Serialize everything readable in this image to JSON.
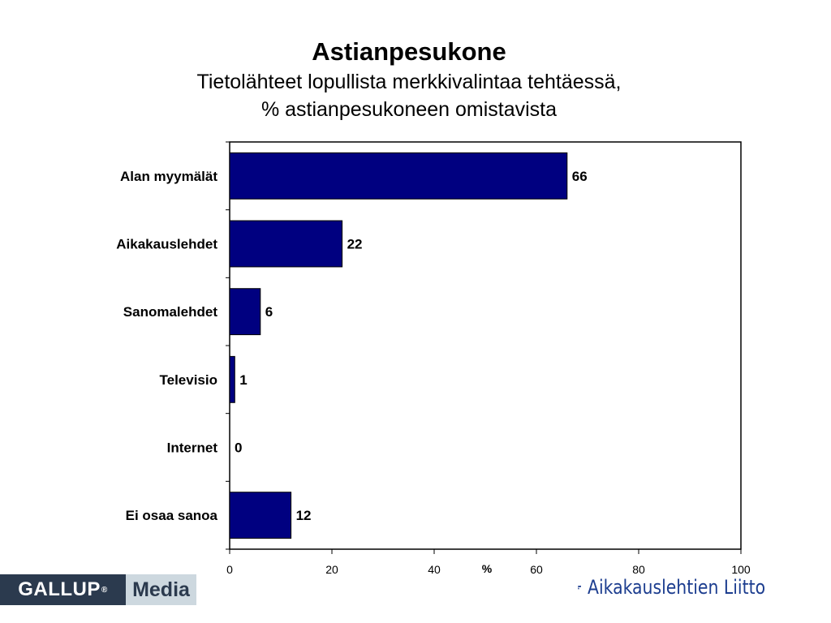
{
  "chart_data": {
    "type": "bar",
    "orientation": "horizontal",
    "title": "Astianpesukone",
    "subtitle_lines": [
      "Tietolähteet lopullista merkkivalintaa tehtäessä,",
      "% astianpesukoneen omistavista"
    ],
    "categories": [
      "Alan myymälät",
      "Aikakauslehdet",
      "Sanomalehdet",
      "Televisio",
      "Internet",
      "Ei osaa sanoa"
    ],
    "values": [
      66,
      22,
      6,
      1,
      0,
      12
    ],
    "xlabel": "%",
    "xlim": [
      0,
      100
    ],
    "xticks": [
      0,
      20,
      40,
      60,
      80,
      100
    ],
    "bar_color": "#000080",
    "grid": false,
    "legend": "none"
  },
  "logos": {
    "gallup": {
      "main": "GALLUP",
      "reg": "®",
      "sub": "Media"
    },
    "aikakauslehtien_liitto": {
      "text": "Aikakauslehtien Liitto"
    }
  }
}
